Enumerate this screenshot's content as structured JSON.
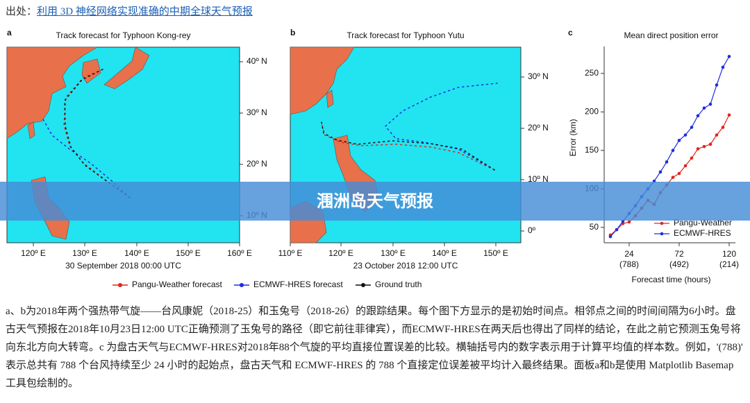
{
  "source": {
    "label": "出处：",
    "link": "利用 3D 神经网络实现准确的中期全球天气预报"
  },
  "panels": [
    {
      "letter": "a",
      "title": "Track forecast for Typhoon Kong-rey",
      "lat_labels": [
        "40º N",
        "30º N",
        "20º N",
        "10º N"
      ],
      "lon_labels": [
        "120º E",
        "130º E",
        "140º E",
        "150º E",
        "160º E"
      ],
      "date": "30 September 2018 00:00 UTC"
    },
    {
      "letter": "b",
      "title": "Track forecast for Typhoon Yutu",
      "lat_labels": [
        "30º N",
        "20º N",
        "10º N",
        "0º"
      ],
      "lon_labels": [
        "110º E",
        "120º E",
        "130º E",
        "140º E",
        "150º E"
      ],
      "date": "23 October 2018 12:00 UTC"
    }
  ],
  "map_legend": [
    {
      "name": "Pangu-Weather forecast",
      "color": "#e0241c"
    },
    {
      "name": "ECMWF-HRES forecast",
      "color": "#1f2be0"
    },
    {
      "name": "Ground truth",
      "color": "#111111"
    }
  ],
  "chart_data": {
    "type": "line",
    "panel_letter": "c",
    "title": "Mean direct position error",
    "x_label": "Forecast time (hours)",
    "y_label": "Error (km)",
    "x": [
      6,
      12,
      18,
      24,
      30,
      36,
      42,
      48,
      54,
      60,
      66,
      72,
      78,
      84,
      90,
      96,
      102,
      108,
      114,
      120
    ],
    "series": [
      {
        "name": "Pangu-Weather",
        "color": "#e0241c",
        "values": [
          40,
          47,
          55,
          57,
          65,
          75,
          85,
          80,
          95,
          105,
          115,
          120,
          130,
          140,
          152,
          155,
          158,
          170,
          180,
          196
        ]
      },
      {
        "name": "ECMWF-HRES",
        "color": "#1f2be0",
        "values": [
          38,
          47,
          58,
          68,
          78,
          90,
          100,
          110,
          122,
          135,
          150,
          163,
          170,
          180,
          195,
          205,
          210,
          235,
          258,
          272
        ]
      }
    ],
    "xlim": [
      0,
      126
    ],
    "ylim": [
      30,
      285
    ],
    "xticks": [
      24,
      72,
      120
    ],
    "xtick_counts": [
      "(788)",
      "(492)",
      "(214)"
    ],
    "yticks": [
      50,
      100,
      150,
      200,
      250
    ],
    "legend": "lower right"
  },
  "banner": "涠洲岛天气预报",
  "caption": "a、b为2018年两个强热带气旋——台风康妮（2018-25）和玉兔号（2018-26）的跟踪结果。每个图下方显示的是初始时间点。相邻点之间的时间间隔为6小时。盘古天气预报在2018年10月23日12:00 UTC正确预测了玉兔号的路径（即它前往菲律宾），而ECMWF-HRES在两天后也得出了同样的结论，在此之前它预测玉兔号将向东北方向大转弯。c 为盘古天气与ECMWF-HRES对2018年88个气旋的平均直接位置误差的比较。横轴括号内的数字表示用于计算平均值的样本数。例如，'(788)' 表示总共有 788 个台风持续至少 24 小时的起始点，盘古天气和 ECMWF-HRES 的 788 个直接定位误差被平均计入最终结果。面板a和b是使用 Matplotlib Basemap 工具包绘制的。"
}
